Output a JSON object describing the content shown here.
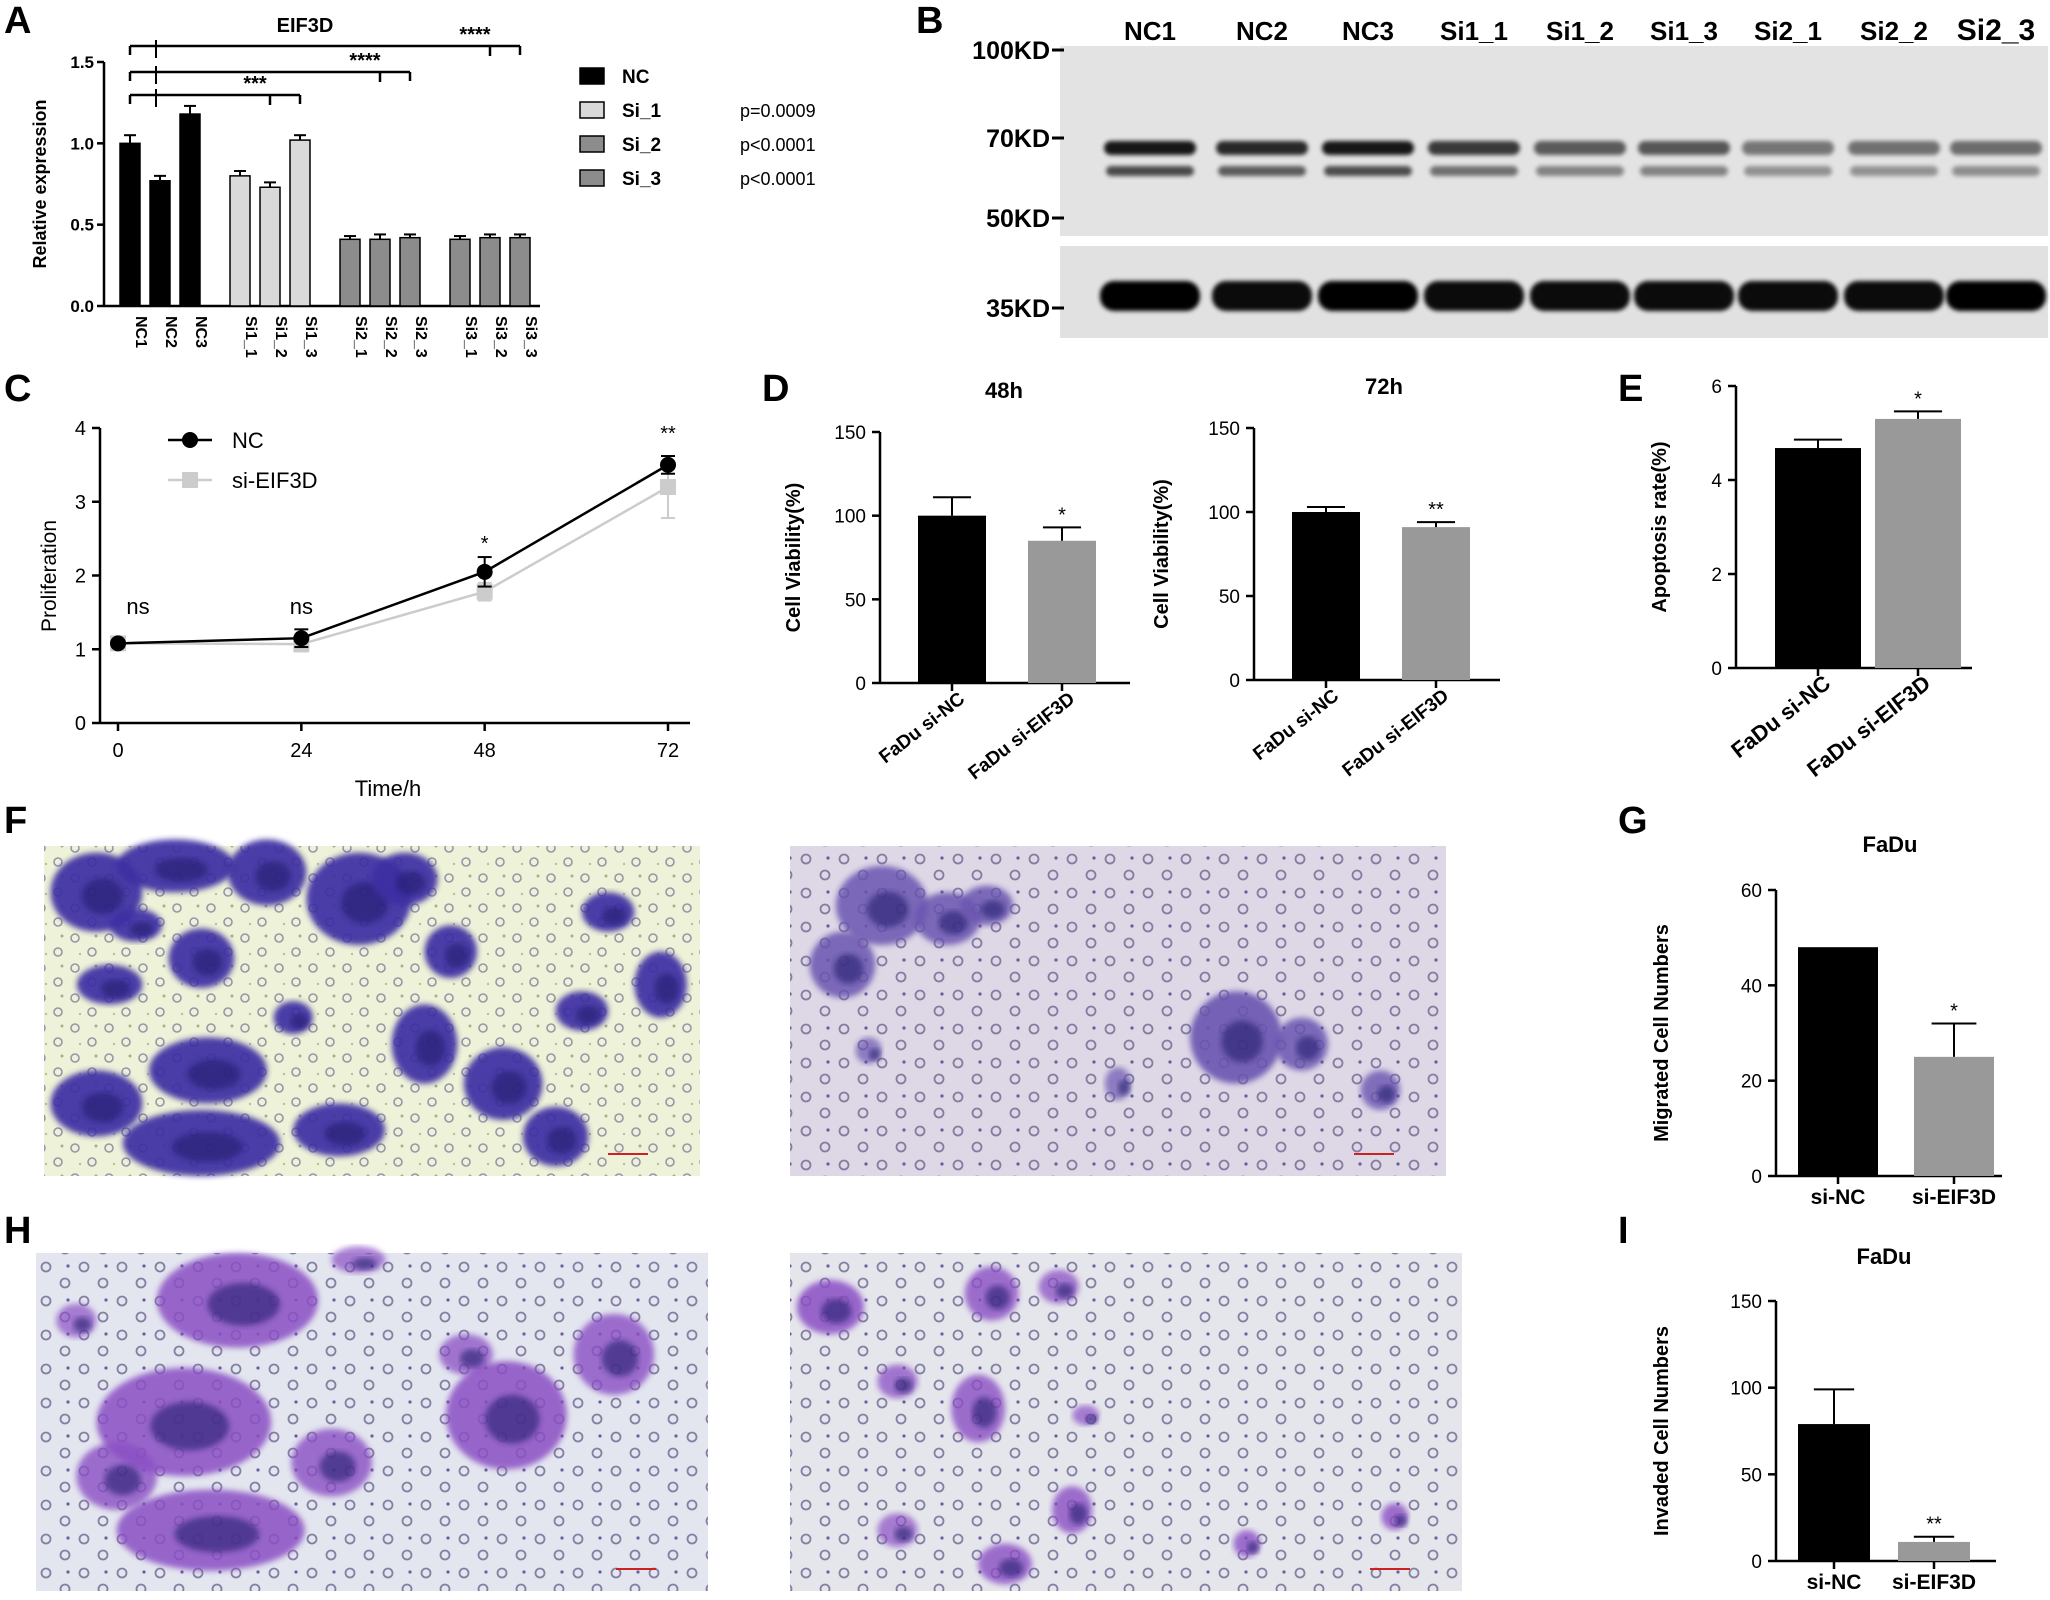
{
  "figure": {
    "panel_letters": [
      "A",
      "B",
      "C",
      "D",
      "E",
      "F",
      "G",
      "H",
      "I"
    ]
  },
  "chart_data": [
    {
      "panel": "A",
      "type": "bar",
      "title": "EIF3D",
      "ylabel": "Relative expression",
      "xlabel": "",
      "ylim": [
        0,
        1.5
      ],
      "yticks": [
        "0.0",
        "0.5",
        "1.0",
        "1.5"
      ],
      "categories": [
        "NC1",
        "NC2",
        "NC3",
        "Si1_1",
        "Si1_2",
        "Si1_3",
        "Si2_1",
        "Si2_2",
        "Si2_3",
        "Si3_1",
        "Si3_2",
        "Si3_3"
      ],
      "groups": [
        {
          "name": "NC",
          "color": "#000000",
          "categories": [
            "NC1",
            "NC2",
            "NC3"
          ],
          "values": [
            1.0,
            0.77,
            1.18
          ],
          "errors": [
            0.05,
            0.03,
            0.05
          ]
        },
        {
          "name": "Si_1",
          "color": "#d9d9d9",
          "categories": [
            "Si1_1",
            "Si1_2",
            "Si1_3"
          ],
          "values": [
            0.8,
            0.73,
            1.02
          ],
          "errors": [
            0.03,
            0.03,
            0.03
          ]
        },
        {
          "name": "Si_2",
          "color": "#8c8c8c",
          "categories": [
            "Si2_1",
            "Si2_2",
            "Si2_3"
          ],
          "values": [
            0.41,
            0.41,
            0.42
          ],
          "errors": [
            0.02,
            0.03,
            0.02
          ]
        },
        {
          "name": "Si_3",
          "color": "#8c8c8c",
          "categories": [
            "Si3_1",
            "Si3_2",
            "Si3_3"
          ],
          "values": [
            0.41,
            0.42,
            0.42
          ],
          "errors": [
            0.02,
            0.02,
            0.02
          ]
        }
      ],
      "legend": {
        "placement": "right",
        "entries": [
          {
            "name": "NC",
            "p": ""
          },
          {
            "name": "Si_1",
            "p": "p=0.0009"
          },
          {
            "name": "Si_2",
            "p": "p<0.0001"
          },
          {
            "name": "Si_3",
            "p": "p<0.0001"
          }
        ]
      },
      "significance": [
        {
          "label": "***",
          "from_group": "NC",
          "to_group": "Si_1"
        },
        {
          "label": "****",
          "from_group": "NC",
          "to_group": "Si_2"
        },
        {
          "label": "****",
          "from_group": "NC",
          "to_group": "Si_3"
        }
      ]
    },
    {
      "panel": "B",
      "type": "blot",
      "lanes": [
        "NC1",
        "NC2",
        "NC3",
        "Si1_1",
        "Si1_2",
        "Si1_3",
        "Si2_1",
        "Si2_2",
        "Si2_3"
      ],
      "markers": [
        "100KD",
        "70KD",
        "50KD",
        "35KD"
      ],
      "band_upper_intensity": [
        0.9,
        0.82,
        0.9,
        0.75,
        0.6,
        0.62,
        0.48,
        0.5,
        0.52
      ],
      "band_lower_intensity": [
        0.8,
        0.7,
        0.78,
        0.6,
        0.5,
        0.5,
        0.42,
        0.42,
        0.44
      ],
      "loading_intensity": [
        1.0,
        0.95,
        1.0,
        0.95,
        0.95,
        0.95,
        0.95,
        0.95,
        1.0
      ]
    },
    {
      "panel": "C",
      "type": "line",
      "xlabel": "Time/h",
      "ylabel": "Proliferation",
      "x": [
        0,
        24,
        48,
        72
      ],
      "xticks": [
        "0",
        "24",
        "48",
        "72"
      ],
      "ylim": [
        0,
        4
      ],
      "yticks": [
        "0",
        "1",
        "2",
        "3",
        "4"
      ],
      "series": [
        {
          "name": "NC",
          "color": "#000000",
          "values": [
            1.08,
            1.15,
            2.05,
            3.5
          ],
          "errors": [
            0.02,
            0.12,
            0.2,
            0.12
          ]
        },
        {
          "name": "si-EIF3D",
          "color": "#cccccc",
          "values": [
            1.08,
            1.07,
            1.78,
            3.2
          ],
          "errors": [
            0.02,
            0.1,
            0.12,
            0.42
          ]
        }
      ],
      "annotations": [
        "ns",
        "ns",
        "*",
        "**"
      ],
      "legend": "top-left"
    },
    {
      "panel": "D",
      "type": "bar",
      "title": "48h",
      "ylabel": "Cell Viability(%)",
      "ylim": [
        0,
        150
      ],
      "yticks": [
        "0",
        "50",
        "100",
        "150"
      ],
      "categories": [
        "FaDu si-NC",
        "FaDu si-EIF3D"
      ],
      "values": [
        100,
        85
      ],
      "errors": [
        11,
        8
      ],
      "colors": [
        "#000000",
        "#999999"
      ],
      "significance": [
        "",
        "*"
      ]
    },
    {
      "panel": "D",
      "type": "bar",
      "title": "72h",
      "ylabel": "Cell Viability(%)",
      "ylim": [
        0,
        150
      ],
      "yticks": [
        "0",
        "50",
        "100",
        "150"
      ],
      "categories": [
        "FaDu si-NC",
        "FaDu si-EIF3D"
      ],
      "values": [
        100,
        91
      ],
      "errors": [
        3,
        3
      ],
      "colors": [
        "#000000",
        "#999999"
      ],
      "significance": [
        "",
        "**"
      ]
    },
    {
      "panel": "E",
      "type": "bar",
      "title": "",
      "ylabel": "Apoptosis rate(%)",
      "ylim": [
        0,
        6
      ],
      "yticks": [
        "0",
        "2",
        "4",
        "6"
      ],
      "categories": [
        "FaDu si-NC",
        "FaDu si-EIF3D"
      ],
      "values": [
        4.68,
        5.3
      ],
      "errors": [
        0.18,
        0.16
      ],
      "colors": [
        "#000000",
        "#999999"
      ],
      "significance": [
        "",
        "*"
      ]
    },
    {
      "panel": "G",
      "type": "bar",
      "title": "FaDu",
      "ylabel": "Migrated Cell Numbers",
      "ylim": [
        0,
        60
      ],
      "yticks": [
        "0",
        "20",
        "40",
        "60"
      ],
      "categories": [
        "si-NC",
        "si-EIF3D"
      ],
      "values": [
        48,
        25
      ],
      "errors": [
        0,
        7
      ],
      "colors": [
        "#000000",
        "#999999"
      ],
      "significance": [
        "",
        "*"
      ]
    },
    {
      "panel": "I",
      "type": "bar",
      "title": "FaDu",
      "ylabel": "Invaded Cell Numbers",
      "ylim": [
        0,
        150
      ],
      "yticks": [
        "0",
        "50",
        "100",
        "150"
      ],
      "categories": [
        "si-NC",
        "si-EIF3D"
      ],
      "values": [
        79,
        11
      ],
      "errors": [
        20,
        3
      ],
      "colors": [
        "#000000",
        "#999999"
      ],
      "significance": [
        "",
        "**"
      ]
    }
  ],
  "images": {
    "F": [
      {
        "stain": "heavy"
      },
      {
        "stain": "light"
      }
    ],
    "H": [
      {
        "stain": "heavy"
      },
      {
        "stain": "light"
      }
    ]
  }
}
